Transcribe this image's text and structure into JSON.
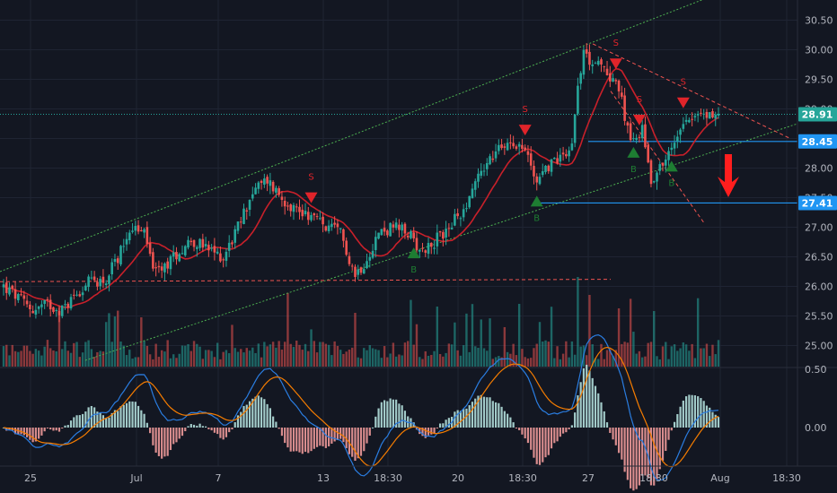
{
  "colors": {
    "background": "#131722",
    "grid": "#1f2433",
    "bull": "#26a69a",
    "bear": "#ef5350",
    "ma": "#c8202a",
    "channel": "#4caf50",
    "level_line": "#2196f3",
    "signal_sell": "#e0242a",
    "signal_buy": "#1e7d32",
    "macd_line": "#2a7de1",
    "macd_signal": "#f57c00",
    "axis_text": "#b2b5be"
  },
  "chart_data": [
    {
      "type": "candlestick",
      "name": "price",
      "x_ticks": [
        "25",
        "Jul",
        "7",
        "13",
        "18:30",
        "20",
        "18:30",
        "27",
        "18:30",
        "Aug",
        "18:30"
      ],
      "y_ticks": [
        "30.50",
        "30.00",
        "29.50",
        "29.00",
        "28.50",
        "28.00",
        "27.50",
        "27.00",
        "26.50",
        "26.00",
        "25.50",
        "25.00"
      ],
      "ylim": [
        24.85,
        30.75
      ],
      "price_labels": [
        {
          "text": "28.91",
          "value": 28.91,
          "kind": "last"
        },
        {
          "text": "28.45",
          "value": 28.45,
          "kind": "level"
        },
        {
          "text": "27.41",
          "value": 27.41,
          "kind": "level"
        }
      ],
      "signals": [
        {
          "label": "S",
          "kind": "sell",
          "bar": 105
        },
        {
          "label": "B",
          "kind": "buy",
          "bar": 140
        },
        {
          "label": "S",
          "kind": "sell",
          "bar": 178
        },
        {
          "label": "B",
          "kind": "buy",
          "bar": 182
        },
        {
          "label": "S",
          "kind": "sell",
          "bar": 209
        },
        {
          "label": "B",
          "kind": "buy",
          "bar": 215
        },
        {
          "label": "S",
          "kind": "sell",
          "bar": 217
        },
        {
          "label": "B",
          "kind": "buy",
          "bar": 228
        },
        {
          "label": "S",
          "kind": "sell",
          "bar": 232
        }
      ],
      "annotation": {
        "kind": "down-arrow",
        "color": "#ff1e1e"
      }
    },
    {
      "type": "bar",
      "name": "volume"
    },
    {
      "type": "line",
      "name": "macd",
      "y_ticks": [
        "0.50",
        "0.00"
      ],
      "ylim": [
        -0.55,
        0.55
      ]
    }
  ]
}
